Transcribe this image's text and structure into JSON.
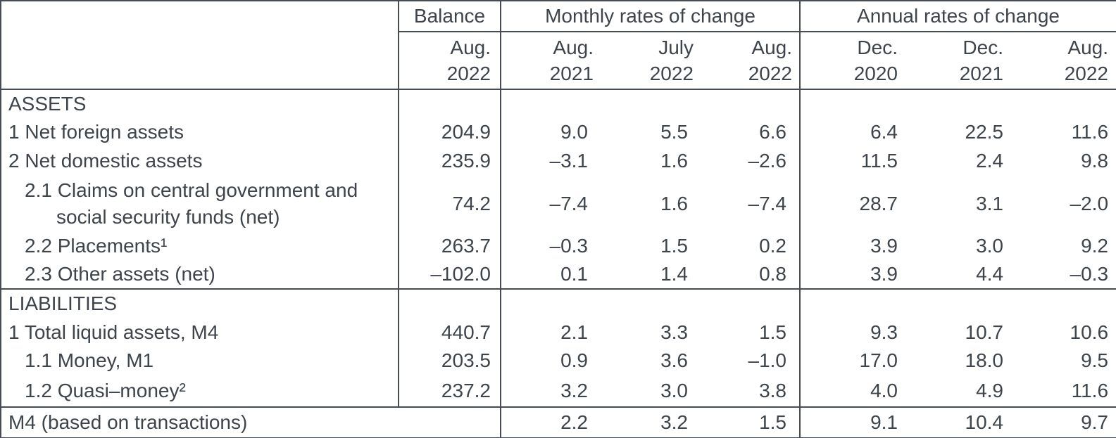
{
  "table": {
    "colors": {
      "text": "#3e444b",
      "grid": "#474c52",
      "background": "#ffffff"
    },
    "header": {
      "corner": "",
      "balance": {
        "title": "Balance",
        "period": {
          "month": "Aug.",
          "year": "2022"
        }
      },
      "monthly": {
        "title": "Monthly rates of change",
        "periods": [
          {
            "month": "Aug.",
            "year": "2021"
          },
          {
            "month": "July",
            "year": "2022"
          },
          {
            "month": "Aug.",
            "year": "2022"
          }
        ]
      },
      "annual": {
        "title": "Annual rates of change",
        "periods": [
          {
            "month": "Dec.",
            "year": "2020"
          },
          {
            "month": "Dec.",
            "year": "2021"
          },
          {
            "month": "Aug.",
            "year": "2022"
          }
        ]
      }
    },
    "rows": [
      {
        "kind": "section",
        "label": "ASSETS",
        "balance": "",
        "monthly": [
          "",
          "",
          ""
        ],
        "annual": [
          "",
          "",
          ""
        ]
      },
      {
        "kind": "item",
        "label": "1 Net foreign assets",
        "balance": "204.9",
        "monthly": [
          "9.0",
          "5.5",
          "6.6"
        ],
        "annual": [
          "6.4",
          "22.5",
          "11.6"
        ]
      },
      {
        "kind": "item",
        "label": "2 Net domestic assets",
        "balance": "235.9",
        "monthly": [
          "–3.1",
          "1.6",
          "–2.6"
        ],
        "annual": [
          "11.5",
          "2.4",
          "9.8"
        ]
      },
      {
        "kind": "subitem",
        "label": "2.1 Claims on central government and social security funds (net)",
        "balance": "74.2",
        "monthly": [
          "–7.4",
          "1.6",
          "–7.4"
        ],
        "annual": [
          "28.7",
          "3.1",
          "–2.0"
        ]
      },
      {
        "kind": "subitem",
        "label": "2.2 Placements¹",
        "balance": "263.7",
        "monthly": [
          "–0.3",
          "1.5",
          "0.2"
        ],
        "annual": [
          "3.9",
          "3.0",
          "9.2"
        ]
      },
      {
        "kind": "subitem",
        "label": "2.3 Other assets (net)",
        "balance": "–102.0",
        "monthly": [
          "0.1",
          "1.4",
          "0.8"
        ],
        "annual": [
          "3.9",
          "4.4",
          "–0.3"
        ]
      },
      {
        "kind": "section",
        "label": "LIABILITIES",
        "balance": "",
        "monthly": [
          "",
          "",
          ""
        ],
        "annual": [
          "",
          "",
          ""
        ]
      },
      {
        "kind": "item",
        "label": "1 Total liquid assets, M4",
        "balance": "440.7",
        "monthly": [
          "2.1",
          "3.3",
          "1.5"
        ],
        "annual": [
          "9.3",
          "10.7",
          "10.6"
        ]
      },
      {
        "kind": "subitem",
        "label": "1.1 Money, M1",
        "balance": "203.5",
        "monthly": [
          "0.9",
          "3.6",
          "–1.0"
        ],
        "annual": [
          "17.0",
          "18.0",
          "9.5"
        ]
      },
      {
        "kind": "subitem",
        "label": "1.2 Quasi–money²",
        "balance": "237.2",
        "monthly": [
          "3.2",
          "3.0",
          "3.8"
        ],
        "annual": [
          "4.0",
          "4.9",
          "11.6"
        ]
      },
      {
        "kind": "footer",
        "label": "M4 (based on transactions)",
        "balance": "",
        "monthly": [
          "2.2",
          "3.2",
          "1.5"
        ],
        "annual": [
          "9.1",
          "10.4",
          "9.7"
        ]
      }
    ]
  }
}
